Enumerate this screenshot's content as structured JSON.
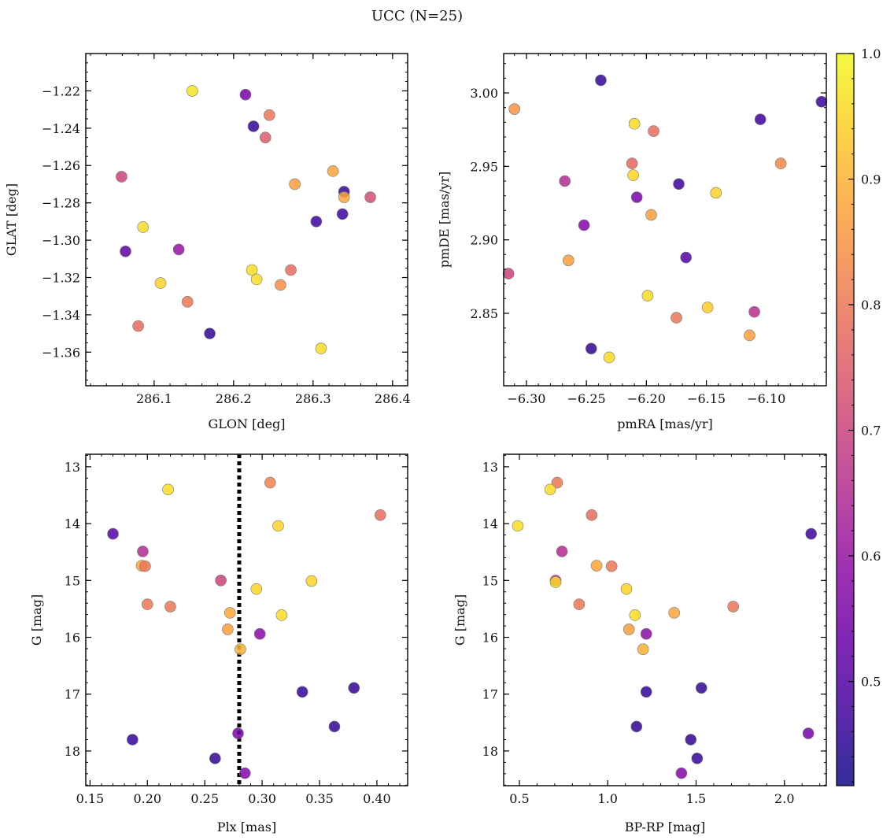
{
  "title": "UCC (N=25)",
  "colorbar": {
    "colormap": "plasma",
    "range": [
      0.417,
      1.0
    ],
    "ticks": [
      0.5,
      0.6,
      0.7,
      0.8,
      0.9,
      1.0
    ],
    "tick_labels": [
      "0.5",
      "0.6",
      "0.7",
      "0.8",
      "0.9",
      "1.0"
    ]
  },
  "chart_data": [
    {
      "type": "scatter",
      "xlabel": "GLON [deg]",
      "ylabel": "GLAT [deg]",
      "xlim": [
        286.014,
        286.419
      ],
      "ylim": [
        -1.378,
        -1.2
      ],
      "y_inverted": false,
      "x_ticks": [
        286.1,
        286.2,
        286.3,
        286.4
      ],
      "x_tick_labels": [
        "286.1",
        "286.2",
        "286.3",
        "286.4"
      ],
      "x_minor": 0.02,
      "y_ticks": [
        -1.22,
        -1.24,
        -1.26,
        -1.28,
        -1.3,
        -1.32,
        -1.34,
        -1.36
      ],
      "y_tick_labels": [
        "−1.22",
        "−1.24",
        "−1.26",
        "−1.28",
        "−1.30",
        "−1.32",
        "−1.34",
        "−1.36"
      ],
      "y_minor": 0.005,
      "points": [
        [
          286.148,
          -1.22,
          0.97
        ],
        [
          286.215,
          -1.222,
          0.55
        ],
        [
          286.225,
          -1.239,
          0.46
        ],
        [
          286.245,
          -1.233,
          0.8
        ],
        [
          286.24,
          -1.245,
          0.75
        ],
        [
          286.059,
          -1.266,
          0.7
        ],
        [
          286.325,
          -1.263,
          0.88
        ],
        [
          286.277,
          -1.27,
          0.87
        ],
        [
          286.339,
          -1.274,
          0.46
        ],
        [
          286.372,
          -1.277,
          0.72
        ],
        [
          286.339,
          -1.277,
          0.88
        ],
        [
          286.086,
          -1.293,
          0.96
        ],
        [
          286.337,
          -1.286,
          0.47
        ],
        [
          286.304,
          -1.29,
          0.47
        ],
        [
          286.064,
          -1.306,
          0.52
        ],
        [
          286.131,
          -1.305,
          0.6
        ],
        [
          286.223,
          -1.316,
          0.96
        ],
        [
          286.229,
          -1.321,
          0.96
        ],
        [
          286.108,
          -1.323,
          0.95
        ],
        [
          286.272,
          -1.316,
          0.78
        ],
        [
          286.259,
          -1.324,
          0.84
        ],
        [
          286.142,
          -1.333,
          0.8
        ],
        [
          286.08,
          -1.346,
          0.78
        ],
        [
          286.17,
          -1.35,
          0.46
        ],
        [
          286.31,
          -1.358,
          0.96
        ]
      ]
    },
    {
      "type": "scatter",
      "xlabel": "pmRA [mas/yr]",
      "ylabel": "pmDE [mas/yr]",
      "xlim": [
        -6.319,
        -6.05
      ],
      "ylim": [
        2.8007,
        3.0268
      ],
      "y_inverted": false,
      "x_ticks": [
        -6.3,
        -6.25,
        -6.2,
        -6.15,
        -6.1
      ],
      "x_tick_labels": [
        "−6.30",
        "−6.25",
        "−6.20",
        "−6.15",
        "−6.10"
      ],
      "x_minor": 0.01,
      "y_ticks": [
        3.0,
        2.95,
        2.9,
        2.85
      ],
      "y_tick_labels": [
        "3.00",
        "2.95",
        "2.90",
        "2.85"
      ],
      "y_minor": 0.01,
      "points": [
        [
          -6.238,
          3.0086,
          0.46
        ],
        [
          -6.31,
          2.989,
          0.85
        ],
        [
          -6.054,
          2.994,
          0.47
        ],
        [
          -6.105,
          2.982,
          0.47
        ],
        [
          -6.21,
          2.979,
          0.96
        ],
        [
          -6.194,
          2.974,
          0.78
        ],
        [
          -6.088,
          2.952,
          0.83
        ],
        [
          -6.212,
          2.952,
          0.77
        ],
        [
          -6.211,
          2.944,
          0.95
        ],
        [
          -6.268,
          2.94,
          0.65
        ],
        [
          -6.173,
          2.938,
          0.47
        ],
        [
          -6.142,
          2.932,
          0.95
        ],
        [
          -6.208,
          2.929,
          0.55
        ],
        [
          -6.196,
          2.917,
          0.87
        ],
        [
          -6.252,
          2.91,
          0.57
        ],
        [
          -6.167,
          2.888,
          0.5
        ],
        [
          -6.265,
          2.886,
          0.87
        ],
        [
          -6.315,
          2.877,
          0.7
        ],
        [
          -6.199,
          2.862,
          0.96
        ],
        [
          -6.149,
          2.854,
          0.94
        ],
        [
          -6.175,
          2.847,
          0.8
        ],
        [
          -6.11,
          2.851,
          0.66
        ],
        [
          -6.114,
          2.835,
          0.87
        ],
        [
          -6.246,
          2.826,
          0.46
        ],
        [
          -6.231,
          2.82,
          0.96
        ]
      ]
    },
    {
      "type": "scatter",
      "xlabel": "Plx [mas]",
      "ylabel": "G [mag]",
      "xlim": [
        0.1463,
        0.4268
      ],
      "ylim": [
        12.78,
        18.61
      ],
      "y_inverted": true,
      "x_ticks": [
        0.15,
        0.2,
        0.25,
        0.3,
        0.35,
        0.4
      ],
      "x_tick_labels": [
        "0.15",
        "0.20",
        "0.25",
        "0.30",
        "0.35",
        "0.40"
      ],
      "x_minor": 0.01,
      "y_ticks": [
        13,
        14,
        15,
        16,
        17,
        18
      ],
      "y_tick_labels": [
        "13",
        "14",
        "15",
        "16",
        "17",
        "18"
      ],
      "y_minor": 0.2,
      "vline": 0.28,
      "points": [
        [
          0.218,
          13.4,
          0.96
        ],
        [
          0.307,
          13.28,
          0.82
        ],
        [
          0.403,
          13.85,
          0.78
        ],
        [
          0.314,
          14.04,
          0.95
        ],
        [
          0.17,
          14.18,
          0.5
        ],
        [
          0.196,
          14.49,
          0.65
        ],
        [
          0.195,
          14.74,
          0.88
        ],
        [
          0.198,
          14.75,
          0.8
        ],
        [
          0.264,
          15.0,
          0.7
        ],
        [
          0.343,
          15.01,
          0.95
        ],
        [
          0.295,
          15.15,
          0.95
        ],
        [
          0.2,
          15.42,
          0.8
        ],
        [
          0.22,
          15.46,
          0.8
        ],
        [
          0.272,
          15.57,
          0.88
        ],
        [
          0.317,
          15.61,
          0.96
        ],
        [
          0.27,
          15.86,
          0.87
        ],
        [
          0.298,
          15.94,
          0.58
        ],
        [
          0.281,
          16.21,
          0.9
        ],
        [
          0.335,
          16.96,
          0.46
        ],
        [
          0.38,
          16.89,
          0.46
        ],
        [
          0.363,
          17.57,
          0.46
        ],
        [
          0.187,
          17.8,
          0.46
        ],
        [
          0.279,
          17.69,
          0.55
        ],
        [
          0.259,
          18.13,
          0.46
        ],
        [
          0.285,
          18.39,
          0.57
        ]
      ]
    },
    {
      "type": "scatter",
      "xlabel": "BP-RP [mag]",
      "ylabel": "G [mag]",
      "xlim": [
        0.411,
        2.237
      ],
      "ylim": [
        12.78,
        18.61
      ],
      "y_inverted": true,
      "x_ticks": [
        0.5,
        1.0,
        1.5,
        2.0
      ],
      "x_tick_labels": [
        "0.5",
        "1.0",
        "1.5",
        "2.0"
      ],
      "x_minor": 0.1,
      "y_ticks": [
        13,
        14,
        15,
        16,
        17,
        18
      ],
      "y_tick_labels": [
        "13",
        "14",
        "15",
        "16",
        "17",
        "18"
      ],
      "y_minor": 0.2,
      "points": [
        [
          0.714,
          13.28,
          0.8
        ],
        [
          0.674,
          13.4,
          0.96
        ],
        [
          0.491,
          14.04,
          0.96
        ],
        [
          0.909,
          13.85,
          0.78
        ],
        [
          2.151,
          14.18,
          0.47
        ],
        [
          0.741,
          14.49,
          0.65
        ],
        [
          0.937,
          14.74,
          0.88
        ],
        [
          1.022,
          14.75,
          0.8
        ],
        [
          0.705,
          15.0,
          0.7
        ],
        [
          0.705,
          15.03,
          0.95
        ],
        [
          1.106,
          15.15,
          0.95
        ],
        [
          0.838,
          15.42,
          0.8
        ],
        [
          1.71,
          15.46,
          0.8
        ],
        [
          1.376,
          15.57,
          0.88
        ],
        [
          1.154,
          15.61,
          0.96
        ],
        [
          1.12,
          15.86,
          0.87
        ],
        [
          1.218,
          15.94,
          0.58
        ],
        [
          1.2,
          16.21,
          0.9
        ],
        [
          1.218,
          16.96,
          0.46
        ],
        [
          1.53,
          16.89,
          0.46
        ],
        [
          1.163,
          17.57,
          0.46
        ],
        [
          1.47,
          17.8,
          0.46
        ],
        [
          2.135,
          17.69,
          0.55
        ],
        [
          1.506,
          18.13,
          0.46
        ],
        [
          1.417,
          18.39,
          0.57
        ]
      ]
    }
  ]
}
